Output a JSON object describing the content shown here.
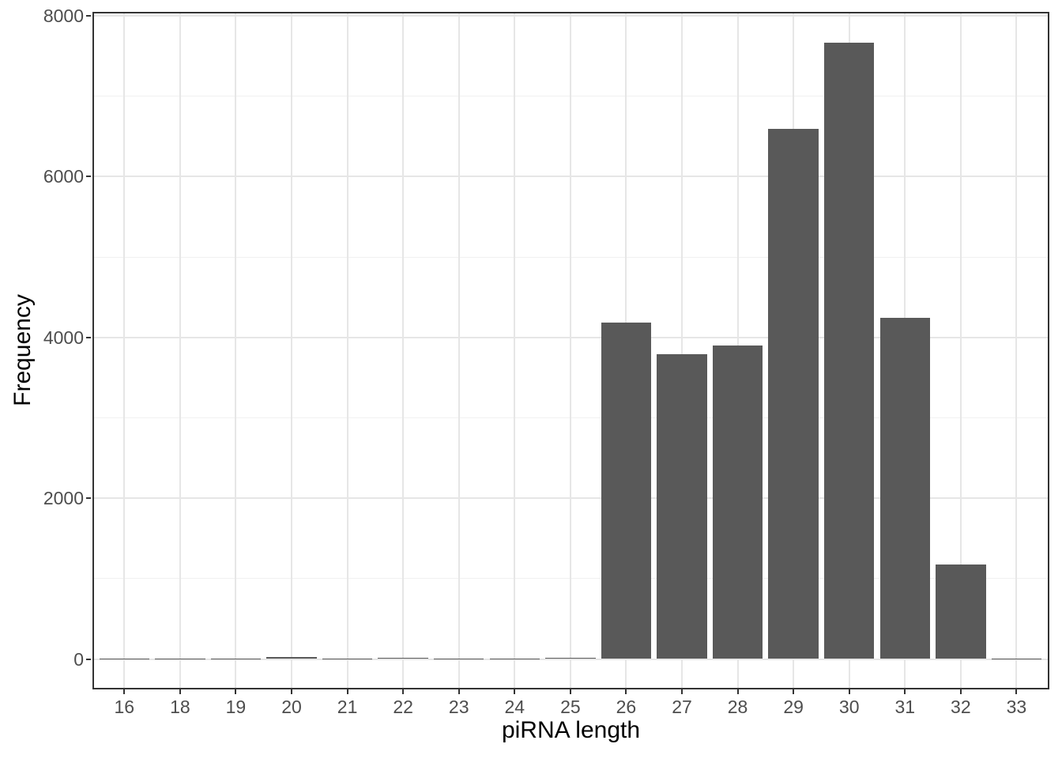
{
  "chart_data": {
    "type": "bar",
    "title": "",
    "xlabel": "piRNA length",
    "ylabel": "Frequency",
    "categories": [
      "16",
      "18",
      "19",
      "20",
      "21",
      "22",
      "23",
      "24",
      "25",
      "26",
      "27",
      "28",
      "29",
      "30",
      "31",
      "32",
      "33"
    ],
    "values": [
      2,
      2,
      2,
      20,
      2,
      18,
      2,
      2,
      15,
      4180,
      3790,
      3900,
      6590,
      7670,
      4240,
      1180,
      2
    ],
    "ylim": [
      0,
      8000
    ],
    "yticks": [
      0,
      2000,
      4000,
      6000,
      8000
    ],
    "ytick_labels": [
      "0",
      "2000",
      "4000",
      "6000",
      "8000"
    ],
    "yminor": [
      1000,
      3000,
      5000,
      7000
    ],
    "grid": "on",
    "legend_position": "none",
    "colors": {
      "bar_fill": "#595959",
      "grid_major": "#e6e6e6",
      "grid_minor": "#f1f1f1",
      "panel_border": "#333333",
      "tick_mark": "#333333",
      "tick_label": "#4d4d4d",
      "axis_title": "#000000",
      "panel_background": "#ffffff"
    }
  }
}
